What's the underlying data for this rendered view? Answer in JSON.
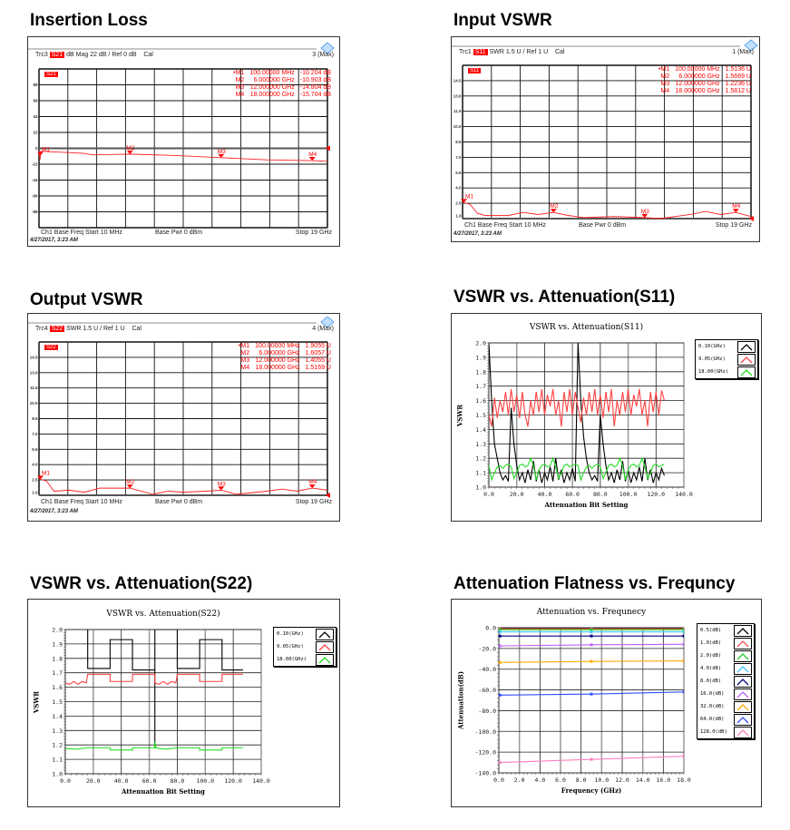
{
  "headings": {
    "insertion_loss": "Insertion Loss",
    "input_vswr": "Input VSWR",
    "output_vswr": "Output VSWR",
    "s11": "VSWR  vs. Attenuation(S11)",
    "s22": "VSWR  vs. Attenuation(S22)",
    "flatness": "Attenuation Flatness  vs. Frequncy"
  },
  "vna": {
    "insertion_loss": {
      "trace": "Trc3",
      "param": "S21",
      "format": "dB Mag  22 dB /  Ref 0 dB",
      "cal": "Cal",
      "status": "3 (Max)",
      "channel": "Ch1  Base Freq  Start  10 MHz",
      "power": "Base Pwr   0 dBm",
      "stop": "Stop  19 GHz",
      "timestamp": "4/27/2017, 3:23 AM",
      "markers": [
        {
          "name": "•M1",
          "stimulus": "100.00000 MHz",
          "response": "-10.204 dB",
          "freq_ghz": 0.1,
          "label": "M1"
        },
        {
          "name": "M2",
          "stimulus": "6.000000 GHz",
          "response": "-10.903 dB",
          "freq_ghz": 6,
          "label": "M2"
        },
        {
          "name": "M3",
          "stimulus": "12.000000 GHz",
          "response": "-14.804 dB",
          "freq_ghz": 12,
          "label": "M3"
        },
        {
          "name": "M4",
          "stimulus": "18.000000 GHz",
          "response": "-15.704 dB",
          "freq_ghz": 18,
          "label": "M4"
        }
      ],
      "y_ticks": [
        "88",
        "66",
        "44",
        "22",
        "0",
        "-22",
        "-44",
        "-66",
        "-88"
      ],
      "y_range": [
        -110,
        110
      ],
      "x_range_ghz": [
        0.01,
        19
      ],
      "ref_value": 0,
      "trace_points": [
        [
          0.01,
          -4
        ],
        [
          0.08,
          -16
        ],
        [
          0.12,
          -4
        ],
        [
          1,
          -5
        ],
        [
          3,
          -7
        ],
        [
          3.5,
          -9
        ],
        [
          6,
          -8
        ],
        [
          9,
          -10
        ],
        [
          12,
          -13
        ],
        [
          15,
          -16
        ],
        [
          18,
          -17
        ],
        [
          19,
          -18
        ]
      ]
    },
    "input_vswr": {
      "trace": "Trc1",
      "param": "S11",
      "format": "SWR  1.5 U /  Ref 1 U",
      "cal": "Cal",
      "status": "1 (Max)",
      "channel": "Ch1  Base Freq  Start  10 MHz",
      "power": "Base Pwr   0 dBm",
      "stop": "Stop  19 GHz",
      "timestamp": "4/27/2017, 3:23 AM",
      "markers": [
        {
          "name": "•M1",
          "stimulus": "100.00000 MHz",
          "response": "1.5136 U",
          "freq_ghz": 0.1,
          "label": "M1"
        },
        {
          "name": "M2",
          "stimulus": "6.000000 GHz",
          "response": "1.5669 U",
          "freq_ghz": 6,
          "label": "M2"
        },
        {
          "name": "M3",
          "stimulus": "12.000000 GHz",
          "response": "1.2236 U",
          "freq_ghz": 12,
          "label": "M3"
        },
        {
          "name": "M4",
          "stimulus": "18.000000 GHz",
          "response": "1.5812 U",
          "freq_ghz": 18,
          "label": "M4"
        }
      ],
      "y_ticks": [
        "14.5",
        "13.0",
        "11.5",
        "10.0",
        "8.5",
        "7.0",
        "5.5",
        "4.0",
        "2.5",
        "1.0"
      ],
      "y_range": [
        1,
        16
      ],
      "x_range_ghz": [
        0.01,
        19
      ],
      "ref_value": 1,
      "trace_points": [
        [
          0.01,
          2.6
        ],
        [
          0.5,
          2.4
        ],
        [
          1,
          1.5
        ],
        [
          1.5,
          1.3
        ],
        [
          3,
          1.3
        ],
        [
          4,
          1.6
        ],
        [
          5,
          1.4
        ],
        [
          6,
          1.6
        ],
        [
          7,
          1.3
        ],
        [
          8,
          1.1
        ],
        [
          10,
          1.2
        ],
        [
          12,
          1.1
        ],
        [
          13,
          1.0
        ],
        [
          15,
          1.4
        ],
        [
          16,
          1.7
        ],
        [
          17,
          1.4
        ],
        [
          18,
          1.6
        ],
        [
          19,
          1.2
        ]
      ]
    },
    "output_vswr": {
      "trace": "Trc4",
      "param": "S22",
      "format": "SWR  1.5 U /  Ref 1 U",
      "cal": "Cal",
      "status": "4 (Max)",
      "channel": "Ch1  Base Freq  Start  10 MHz",
      "power": "Base Pwr   0 dBm",
      "stop": "Stop  19 GHz",
      "timestamp": "4/27/2017, 3:23 AM",
      "markers": [
        {
          "name": "•M1",
          "stimulus": "100.00000 MHz",
          "response": "1.9055 U",
          "freq_ghz": 0.1,
          "label": "M1"
        },
        {
          "name": "M2",
          "stimulus": "6.000000 GHz",
          "response": "1.6057 U",
          "freq_ghz": 6,
          "label": "M2"
        },
        {
          "name": "M3",
          "stimulus": "12.000000 GHz",
          "response": "1.4055 U",
          "freq_ghz": 12,
          "label": "M3"
        },
        {
          "name": "M4",
          "stimulus": "18.000000 GHz",
          "response": "1.5169 U",
          "freq_ghz": 18,
          "label": "M4"
        }
      ],
      "y_ticks": [
        "14.5",
        "13.0",
        "11.5",
        "10.0",
        "8.5",
        "7.0",
        "5.5",
        "4.0",
        "2.5",
        "1.0"
      ],
      "y_range": [
        1,
        16
      ],
      "x_range_ghz": [
        0.01,
        19
      ],
      "ref_value": 1,
      "trace_points": [
        [
          0.01,
          2.6
        ],
        [
          0.5,
          2.4
        ],
        [
          1,
          1.4
        ],
        [
          2,
          1.5
        ],
        [
          3,
          1.3
        ],
        [
          4,
          1.7
        ],
        [
          5,
          1.7
        ],
        [
          6,
          1.7
        ],
        [
          7.5,
          1.1
        ],
        [
          8.5,
          1.4
        ],
        [
          9.5,
          1.3
        ],
        [
          11,
          1.4
        ],
        [
          12,
          1.5
        ],
        [
          13,
          1.1
        ],
        [
          15,
          1.4
        ],
        [
          16,
          1.6
        ],
        [
          17,
          1.4
        ],
        [
          18,
          1.7
        ],
        [
          19,
          1.5
        ]
      ]
    }
  },
  "chart_data": [
    {
      "id": "s11",
      "type": "line",
      "title": "VSWR vs. Attenuation(S11)",
      "xlabel": "Attenuation Bit Setting",
      "ylabel": "VSWR",
      "xlim": [
        0,
        140
      ],
      "ylim": [
        1.0,
        2.0
      ],
      "x_ticks": [
        "0.0",
        "20.0",
        "40.0",
        "60.0",
        "80.0",
        "100.0",
        "120.0",
        "140.0"
      ],
      "y_ticks": [
        "1.0",
        "1.1",
        "1.2",
        "1.3",
        "1.4",
        "1.5",
        "1.6",
        "1.7",
        "1.8",
        "1.9",
        "2.0"
      ],
      "legend_position": "right",
      "x_start": 0,
      "x_step": 2,
      "series": [
        {
          "name": "0.10(GHz)",
          "color": "#000000",
          "values": [
            2.0,
            1.6,
            1.3,
            1.2,
            1.1,
            1.05,
            1.08,
            1.04,
            1.55,
            1.3,
            1.15,
            1.05,
            1.1,
            1.03,
            1.12,
            1.05,
            1.18,
            1.04,
            1.12,
            1.03,
            1.1,
            1.05,
            1.14,
            1.04,
            1.2,
            1.05,
            1.12,
            1.03,
            1.1,
            1.05,
            1.13,
            1.04,
            2.0,
            1.6,
            1.35,
            1.2,
            1.1,
            1.05,
            1.08,
            1.04,
            1.5,
            1.3,
            1.15,
            1.05,
            1.1,
            1.03,
            1.12,
            1.05,
            1.18,
            1.04,
            1.12,
            1.03,
            1.1,
            1.05,
            1.14,
            1.04,
            1.2,
            1.05,
            1.12,
            1.03,
            1.1,
            1.05,
            1.13,
            1.08
          ]
        },
        {
          "name": "9.05(GHz)",
          "color": "#ff4040",
          "values": [
            1.5,
            1.42,
            1.62,
            1.48,
            1.6,
            1.52,
            1.66,
            1.5,
            1.68,
            1.52,
            1.64,
            1.48,
            1.66,
            1.5,
            1.42,
            1.6,
            1.5,
            1.66,
            1.52,
            1.68,
            1.5,
            1.64,
            1.56,
            1.68,
            1.5,
            1.6,
            1.42,
            1.66,
            1.52,
            1.68,
            1.5,
            1.66,
            1.55,
            1.45,
            1.62,
            1.5,
            1.66,
            1.52,
            1.68,
            1.5,
            1.64,
            1.48,
            1.66,
            1.52,
            1.68,
            1.42,
            1.6,
            1.5,
            1.66,
            1.52,
            1.68,
            1.5,
            1.64,
            1.56,
            1.68,
            1.5,
            1.6,
            1.42,
            1.66,
            1.52,
            1.66,
            1.5,
            1.67,
            1.6
          ]
        },
        {
          "name": "18.00(GHz)",
          "color": "#22dd22",
          "values": [
            1.15,
            1.05,
            1.1,
            1.14,
            1.15,
            1.13,
            1.15,
            1.16,
            1.14,
            1.06,
            1.1,
            1.15,
            1.16,
            1.14,
            1.15,
            1.2,
            1.15,
            1.05,
            1.12,
            1.15,
            1.16,
            1.14,
            1.15,
            1.2,
            1.14,
            1.06,
            1.1,
            1.15,
            1.16,
            1.14,
            1.15,
            1.16,
            1.15,
            1.05,
            1.1,
            1.14,
            1.15,
            1.13,
            1.15,
            1.16,
            1.14,
            1.06,
            1.1,
            1.15,
            1.16,
            1.14,
            1.15,
            1.2,
            1.15,
            1.05,
            1.12,
            1.15,
            1.16,
            1.14,
            1.15,
            1.2,
            1.14,
            1.06,
            1.1,
            1.15,
            1.16,
            1.14,
            1.15,
            1.16
          ]
        }
      ]
    },
    {
      "id": "s22",
      "type": "line",
      "title": "VSWR vs. Attenuation(S22)",
      "xlabel": "Attenuation Bit Setting",
      "ylabel": "VSWR",
      "xlim": [
        0,
        140
      ],
      "ylim": [
        1.0,
        2.0
      ],
      "x_ticks": [
        "0.0",
        "20.0",
        "40.0",
        "60.0",
        "80.0",
        "100.0",
        "120.0",
        "140.0"
      ],
      "y_ticks": [
        "1.0",
        "1.1",
        "1.2",
        "1.3",
        "1.4",
        "1.5",
        "1.6",
        "1.7",
        "1.8",
        "1.9",
        "2.0"
      ],
      "legend_position": "right",
      "series": [
        {
          "name": "0.10(GHz)",
          "color": "#000000",
          "x": [
            16,
            16,
            32,
            32,
            48,
            48,
            64,
            64,
            64,
            80,
            80,
            96,
            96,
            112,
            112,
            127
          ],
          "y": [
            2.0,
            1.73,
            1.73,
            1.93,
            1.93,
            1.72,
            1.72,
            1.18,
            2.0,
            2.0,
            1.73,
            1.73,
            1.93,
            1.93,
            1.72,
            1.72
          ]
        },
        {
          "name": "9.05(GHz)",
          "color": "#ff4040",
          "x": [
            0,
            3,
            6,
            9,
            12,
            15,
            16,
            32,
            32,
            48,
            48,
            64,
            64,
            67,
            70,
            73,
            76,
            79,
            80,
            96,
            96,
            112,
            112,
            127
          ],
          "y": [
            1.63,
            1.62,
            1.64,
            1.62,
            1.64,
            1.63,
            1.69,
            1.69,
            1.64,
            1.64,
            1.69,
            1.69,
            1.63,
            1.62,
            1.64,
            1.62,
            1.64,
            1.63,
            1.69,
            1.69,
            1.64,
            1.64,
            1.69,
            1.69
          ]
        },
        {
          "name": "18.00(GHz)",
          "color": "#22dd22",
          "x": [
            0,
            8,
            16,
            32,
            32,
            48,
            48,
            64,
            64,
            65,
            72,
            80,
            96,
            96,
            112,
            112,
            127
          ],
          "y": [
            1.175,
            1.17,
            1.18,
            1.18,
            1.165,
            1.165,
            1.18,
            1.18,
            1.22,
            1.178,
            1.17,
            1.18,
            1.18,
            1.165,
            1.165,
            1.18,
            1.18
          ]
        }
      ]
    },
    {
      "id": "flatness",
      "type": "line",
      "title": "Attenuation vs. Frequnecy",
      "xlabel": "Frequency (GHz)",
      "ylabel": "Attenuation(dB)",
      "xlim": [
        0,
        18
      ],
      "ylim": [
        -140,
        0
      ],
      "x_ticks": [
        "0.0",
        "2.0",
        "4.0",
        "6.0",
        "8.0",
        "10.0",
        "12.0",
        "14.0",
        "16.0",
        "18.0"
      ],
      "y_ticks": [
        "-140.0",
        "-120.0",
        "-100.0",
        "-80.0",
        "-60.0",
        "-40.0",
        "-20.0",
        "0.0"
      ],
      "legend_position": "right",
      "series": [
        {
          "name": "0.5(dB)",
          "color": "#000000",
          "x": [
            0.1,
            9,
            18
          ],
          "y": [
            -0.5,
            -0.5,
            -0.5
          ]
        },
        {
          "name": "1.0(dB)",
          "color": "#ff5050",
          "x": [
            0.1,
            9,
            18
          ],
          "y": [
            -1.0,
            -1.0,
            -1.0
          ]
        },
        {
          "name": "2.0(dB)",
          "color": "#22cc22",
          "x": [
            0.1,
            9,
            18
          ],
          "y": [
            -2.0,
            -2.0,
            -2.0
          ]
        },
        {
          "name": "4.0(dB)",
          "color": "#40c8ff",
          "x": [
            0.1,
            9,
            18
          ],
          "y": [
            -4.0,
            -4.0,
            -4.0
          ]
        },
        {
          "name": "8.0(dB)",
          "color": "#000080",
          "x": [
            0.1,
            9,
            18
          ],
          "y": [
            -8.0,
            -8.0,
            -8.0
          ]
        },
        {
          "name": "16.0(dB)",
          "color": "#c060ff",
          "x": [
            0.1,
            9,
            18
          ],
          "y": [
            -17.5,
            -16.5,
            -16.0
          ]
        },
        {
          "name": "32.0(dB)",
          "color": "#ffaa00",
          "x": [
            0.1,
            9,
            18
          ],
          "y": [
            -33.5,
            -32.5,
            -32.0
          ]
        },
        {
          "name": "64.0(dB)",
          "color": "#3050ff",
          "x": [
            0.1,
            9,
            18
          ],
          "y": [
            -65,
            -64,
            -62
          ]
        },
        {
          "name": "128.0(dB)",
          "color": "#ff80c0",
          "x": [
            0.1,
            9,
            18
          ],
          "y": [
            -130,
            -127,
            -124
          ]
        }
      ]
    }
  ]
}
